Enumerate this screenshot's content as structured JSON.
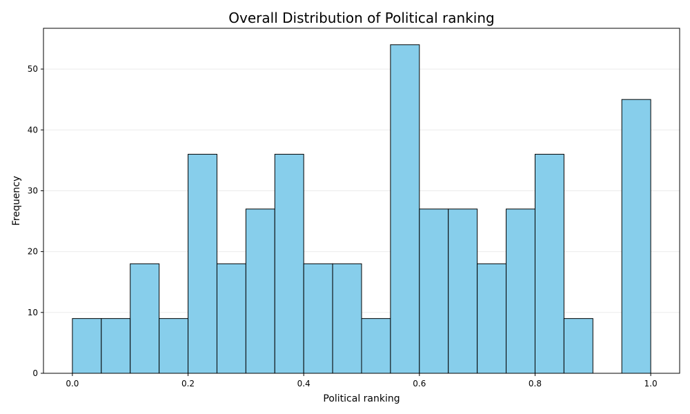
{
  "chart_data": {
    "type": "bar",
    "title": "Overall Distribution of Political ranking",
    "xlabel": "Political ranking",
    "ylabel": "Frequency",
    "bins": [
      [
        0.0,
        0.05
      ],
      [
        0.05,
        0.1
      ],
      [
        0.1,
        0.15
      ],
      [
        0.15,
        0.2
      ],
      [
        0.2,
        0.25
      ],
      [
        0.25,
        0.3
      ],
      [
        0.3,
        0.35
      ],
      [
        0.35,
        0.4
      ],
      [
        0.4,
        0.45
      ],
      [
        0.45,
        0.5
      ],
      [
        0.5,
        0.55
      ],
      [
        0.55,
        0.6
      ],
      [
        0.6,
        0.65
      ],
      [
        0.65,
        0.7
      ],
      [
        0.7,
        0.75
      ],
      [
        0.75,
        0.8
      ],
      [
        0.8,
        0.85
      ],
      [
        0.85,
        0.9
      ],
      [
        0.9,
        0.95
      ],
      [
        0.95,
        1.0
      ]
    ],
    "values": [
      9,
      9,
      18,
      9,
      36,
      18,
      27,
      36,
      18,
      18,
      9,
      54,
      27,
      27,
      18,
      27,
      36,
      9,
      0,
      45
    ],
    "xlim": [
      -0.05,
      1.05
    ],
    "ylim": [
      0,
      56.7
    ],
    "xticks": [
      0.0,
      0.2,
      0.4,
      0.6,
      0.8,
      1.0
    ],
    "xtick_labels": [
      "0.0",
      "0.2",
      "0.4",
      "0.6",
      "0.8",
      "1.0"
    ],
    "yticks": [
      0,
      10,
      20,
      30,
      40,
      50
    ],
    "ytick_labels": [
      "0",
      "10",
      "20",
      "30",
      "40",
      "50"
    ],
    "grid": "horizontal",
    "colors": {
      "bar_fill": "#87ceeb",
      "bar_edge": "#000000",
      "grid": "#ebebeb"
    }
  }
}
